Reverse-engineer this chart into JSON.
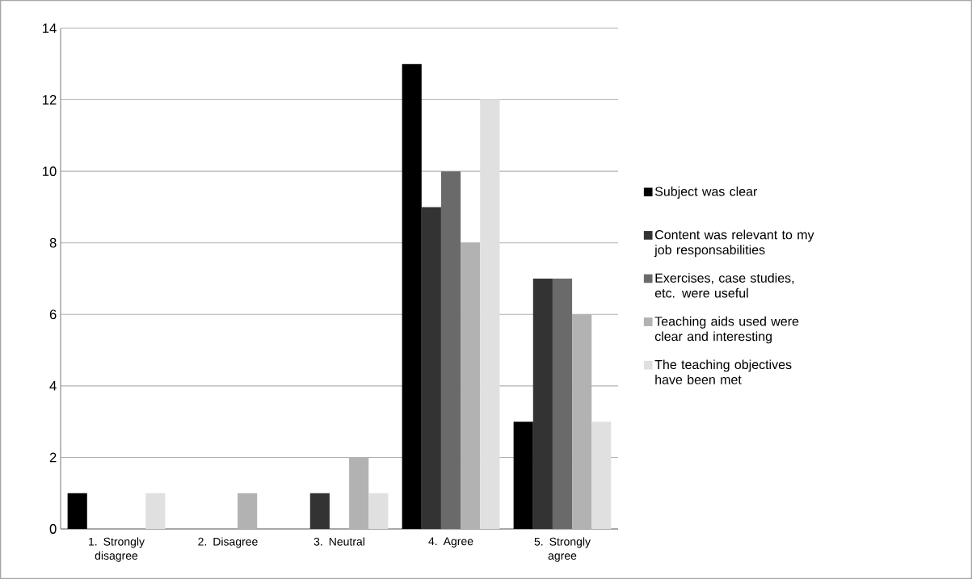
{
  "chart_data": {
    "type": "bar",
    "categories": [
      "1. Strongly disagree",
      "2. Disagree",
      "3. Neutral",
      "4. Agree",
      "5. Strongly agree"
    ],
    "series": [
      {
        "name": "Subject was clear",
        "color": "#000000",
        "values": [
          1,
          0,
          0,
          13,
          3
        ]
      },
      {
        "name": "Content was relevant to my job responsabilities",
        "color": "#333333",
        "values": [
          0,
          0,
          1,
          9,
          7
        ]
      },
      {
        "name": "Exercises, case studies, etc. were useful",
        "color": "#6a6a6a",
        "values": [
          0,
          0,
          0,
          10,
          7
        ]
      },
      {
        "name": "Teaching aids used were clear and interesting",
        "color": "#b2b2b2",
        "values": [
          0,
          1,
          2,
          8,
          6
        ]
      },
      {
        "name": "The teaching objectives have been met",
        "color": "#e0e0e0",
        "values": [
          1,
          0,
          1,
          12,
          3
        ]
      }
    ],
    "ylim": [
      0,
      14
    ],
    "yticks": [
      0,
      2,
      4,
      6,
      8,
      10,
      12,
      14
    ],
    "grid": "y",
    "legend": "right"
  }
}
